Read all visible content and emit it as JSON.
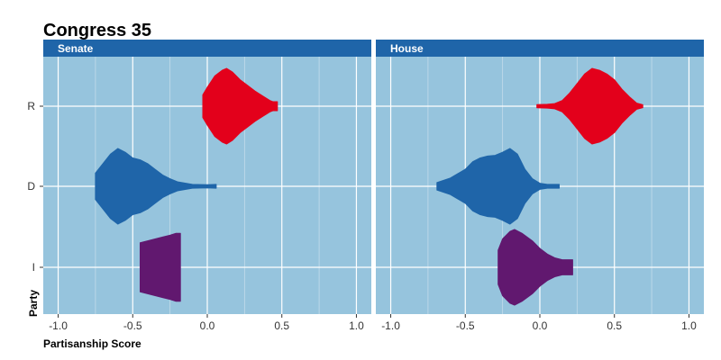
{
  "chart_data": {
    "type": "violin",
    "title": "Congress 35",
    "xlabel": "Partisanship Score",
    "ylabel": "Party",
    "xlim": [
      -1.1,
      1.1
    ],
    "x_ticks": [
      -1.0,
      -0.5,
      0.0,
      0.5,
      1.0
    ],
    "x_tick_labels": [
      "-1.0",
      "-0.5",
      "0.0",
      "0.5",
      "1.0"
    ],
    "categories": [
      "R",
      "D",
      "I"
    ],
    "colors": {
      "R": "#e3001b",
      "D": "#1f65a9",
      "I": "#61186f"
    },
    "grid": true,
    "panel_background": "#96c4dd",
    "strip_color": "#1f65a9",
    "panels": [
      {
        "name": "Senate",
        "violins": [
          {
            "party": "R",
            "min": -0.03,
            "max": 0.47,
            "profile": [
              [
                -0.03,
                0.3
              ],
              [
                0.0,
                0.5
              ],
              [
                0.05,
                0.8
              ],
              [
                0.1,
                0.95
              ],
              [
                0.13,
                1.0
              ],
              [
                0.17,
                0.9
              ],
              [
                0.22,
                0.7
              ],
              [
                0.27,
                0.55
              ],
              [
                0.32,
                0.4
              ],
              [
                0.38,
                0.25
              ],
              [
                0.42,
                0.15
              ],
              [
                0.44,
                0.12
              ],
              [
                0.47,
                0.12
              ]
            ]
          },
          {
            "party": "D",
            "min": -0.75,
            "max": 0.06,
            "profile": [
              [
                -0.75,
                0.35
              ],
              [
                -0.7,
                0.6
              ],
              [
                -0.65,
                0.85
              ],
              [
                -0.6,
                1.0
              ],
              [
                -0.55,
                0.9
              ],
              [
                -0.5,
                0.75
              ],
              [
                -0.45,
                0.7
              ],
              [
                -0.4,
                0.6
              ],
              [
                -0.35,
                0.45
              ],
              [
                -0.3,
                0.3
              ],
              [
                -0.25,
                0.2
              ],
              [
                -0.2,
                0.12
              ],
              [
                -0.1,
                0.05
              ],
              [
                0.0,
                0.04
              ],
              [
                0.06,
                0.05
              ]
            ]
          },
          {
            "party": "I",
            "min": -0.45,
            "max": -0.18,
            "profile": [
              [
                -0.45,
                0.65
              ],
              [
                -0.4,
                0.7
              ],
              [
                -0.35,
                0.75
              ],
              [
                -0.3,
                0.8
              ],
              [
                -0.25,
                0.85
              ],
              [
                -0.21,
                0.9
              ],
              [
                -0.18,
                0.9
              ]
            ]
          }
        ]
      },
      {
        "name": "House",
        "violins": [
          {
            "party": "R",
            "min": -0.02,
            "max": 0.69,
            "profile": [
              [
                -0.02,
                0.04
              ],
              [
                0.05,
                0.05
              ],
              [
                0.1,
                0.07
              ],
              [
                0.15,
                0.15
              ],
              [
                0.2,
                0.35
              ],
              [
                0.25,
                0.6
              ],
              [
                0.3,
                0.85
              ],
              [
                0.35,
                1.0
              ],
              [
                0.4,
                0.95
              ],
              [
                0.45,
                0.85
              ],
              [
                0.5,
                0.7
              ],
              [
                0.55,
                0.45
              ],
              [
                0.6,
                0.25
              ],
              [
                0.65,
                0.08
              ],
              [
                0.69,
                0.04
              ]
            ]
          },
          {
            "party": "D",
            "min": -0.69,
            "max": 0.13,
            "profile": [
              [
                -0.69,
                0.1
              ],
              [
                -0.6,
                0.22
              ],
              [
                -0.5,
                0.45
              ],
              [
                -0.45,
                0.65
              ],
              [
                -0.4,
                0.75
              ],
              [
                -0.35,
                0.8
              ],
              [
                -0.3,
                0.82
              ],
              [
                -0.25,
                0.9
              ],
              [
                -0.2,
                1.0
              ],
              [
                -0.15,
                0.85
              ],
              [
                -0.1,
                0.45
              ],
              [
                -0.05,
                0.2
              ],
              [
                0.0,
                0.08
              ],
              [
                0.05,
                0.05
              ],
              [
                0.13,
                0.05
              ]
            ]
          },
          {
            "party": "I",
            "min": -0.28,
            "max": 0.22,
            "profile": [
              [
                -0.28,
                0.45
              ],
              [
                -0.25,
                0.75
              ],
              [
                -0.2,
                0.95
              ],
              [
                -0.17,
                1.0
              ],
              [
                -0.12,
                0.9
              ],
              [
                -0.05,
                0.7
              ],
              [
                0.0,
                0.5
              ],
              [
                0.05,
                0.35
              ],
              [
                0.1,
                0.25
              ],
              [
                0.15,
                0.2
              ],
              [
                0.22,
                0.2
              ]
            ]
          }
        ]
      }
    ]
  }
}
